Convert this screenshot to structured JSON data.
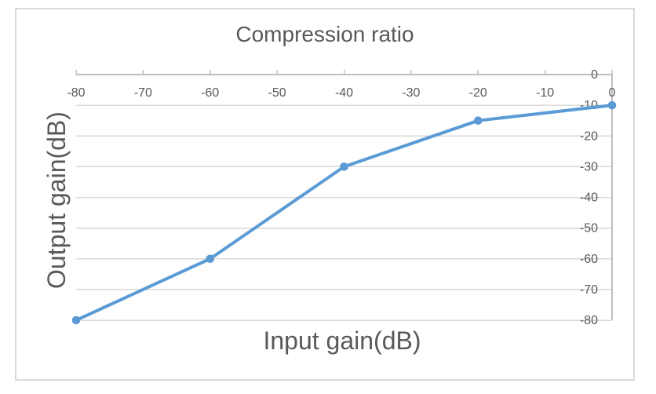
{
  "chart_data": {
    "type": "line",
    "title": "Compression ratio",
    "xlabel": "Input gain(dB)",
    "ylabel": "Output gain(dB)",
    "x": [
      -80,
      -60,
      -40,
      -20,
      0
    ],
    "y": [
      -80,
      -60,
      -30,
      -15,
      -10
    ],
    "xlim": [
      -80,
      0
    ],
    "ylim": [
      -80,
      0
    ],
    "x_ticks": [
      -80,
      -70,
      -60,
      -50,
      -40,
      -30,
      -20,
      -10,
      0
    ],
    "y_ticks": [
      0,
      -10,
      -20,
      -30,
      -40,
      -50,
      -60,
      -70,
      -80
    ],
    "x_axis_position": "top",
    "y_axis_position": "right",
    "grid": "horizontal",
    "legend": false,
    "marker": "circle",
    "series_color": "#5B9BD5"
  },
  "colors": {
    "text": "#595959",
    "gridline": "#D9D9D9",
    "axis": "#BFBFBF",
    "border": "#D9D9D9",
    "background": "#FFFFFF"
  }
}
